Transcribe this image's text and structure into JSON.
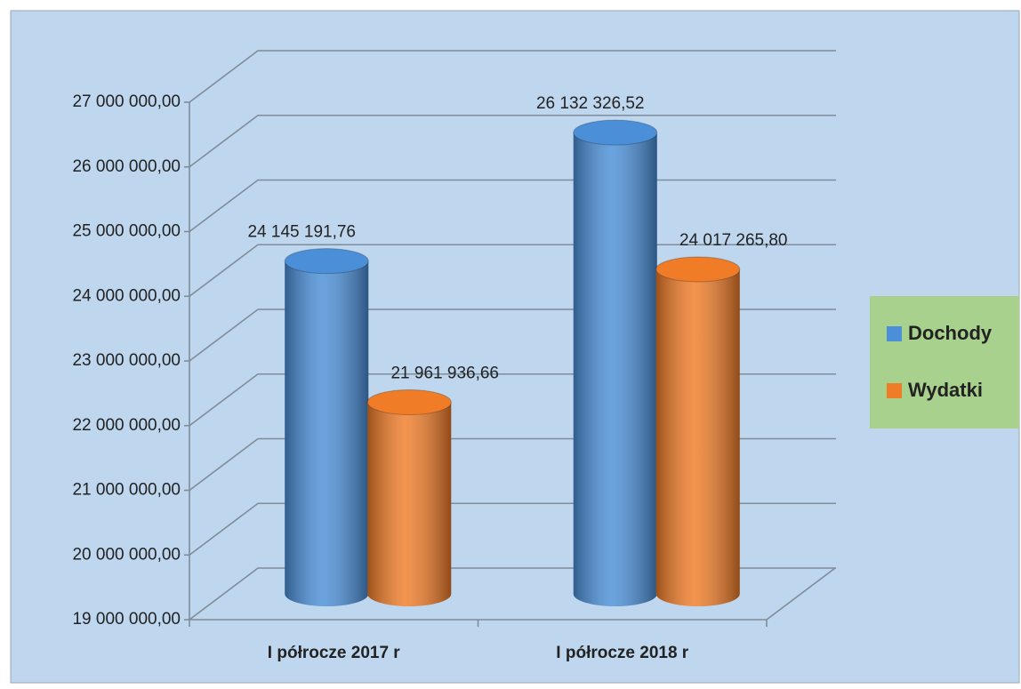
{
  "chart_data": {
    "type": "bar3d",
    "categories": [
      "I półrocze 2017 r",
      "I półrocze 2018 r"
    ],
    "series": [
      {
        "name": "Dochody",
        "color": "#4a8fd8",
        "values": [
          24145191.76,
          26132326.52
        ],
        "value_labels": [
          "24 145 191,76",
          "26 132 326,52"
        ]
      },
      {
        "name": "Wydatki",
        "color": "#f07c28",
        "values": [
          21961936.66,
          24017265.8
        ],
        "value_labels": [
          "21 961 936,66",
          "24 017 265,80"
        ]
      }
    ],
    "ylim": [
      19000000,
      27000000
    ],
    "yticks": [
      {
        "value": 19000000,
        "label": "19 000 000,00"
      },
      {
        "value": 20000000,
        "label": "20 000 000,00"
      },
      {
        "value": 21000000,
        "label": "21 000 000,00"
      },
      {
        "value": 22000000,
        "label": "22 000 000,00"
      },
      {
        "value": 23000000,
        "label": "23 000 000,00"
      },
      {
        "value": 24000000,
        "label": "24 000 000,00"
      },
      {
        "value": 25000000,
        "label": "25 000 000,00"
      },
      {
        "value": 26000000,
        "label": "26 000 000,00"
      },
      {
        "value": 27000000,
        "label": "27 000 000,00"
      }
    ],
    "grid": true,
    "legend": "right"
  }
}
